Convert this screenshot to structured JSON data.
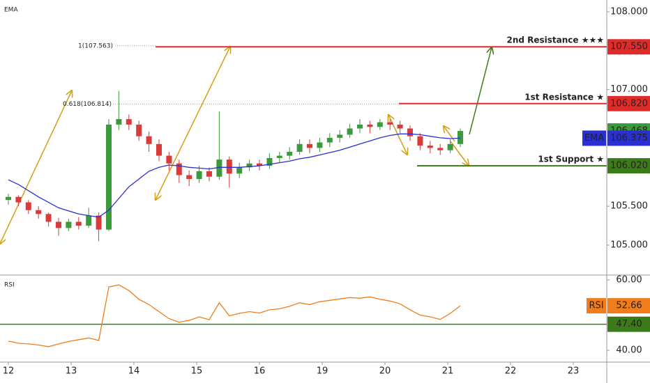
{
  "chart_data": {
    "type": "candlestick",
    "xlim": [
      -0.133,
      9.533
    ],
    "xticks": [
      {
        "value": 0,
        "label": "12"
      },
      {
        "value": 1,
        "label": "13"
      },
      {
        "value": 2,
        "label": "14"
      },
      {
        "value": 3,
        "label": "15"
      },
      {
        "value": 4,
        "label": "16"
      },
      {
        "value": 5,
        "label": "19"
      },
      {
        "value": 6,
        "label": "20"
      },
      {
        "value": 7,
        "label": "21"
      },
      {
        "value": 8,
        "label": "22"
      },
      {
        "value": 9,
        "label": "23"
      }
    ],
    "ylim": [
      104.615,
      108.152
    ],
    "yticks": [
      {
        "value": 105,
        "label": "105.000"
      },
      {
        "value": 105.5,
        "label": "105.500"
      },
      {
        "value": 107,
        "label": "107.000"
      },
      {
        "value": 108,
        "label": "108.000"
      }
    ],
    "up_color": "#3a9a3c",
    "down_color": "#d93b3b",
    "x": [
      0,
      0.16,
      0.32,
      0.48,
      0.64,
      0.8,
      0.96,
      1.12,
      1.28,
      1.44,
      1.6,
      1.76,
      1.92,
      2.08,
      2.24,
      2.4,
      2.56,
      2.72,
      2.88,
      3.04,
      3.2,
      3.36,
      3.52,
      3.68,
      3.84,
      4,
      4.16,
      4.32,
      4.48,
      4.64,
      4.8,
      4.96,
      5.12,
      5.28,
      5.44,
      5.6,
      5.76,
      5.92,
      6.08,
      6.24,
      6.4,
      6.56,
      6.72,
      6.88,
      7.04,
      7.2
    ],
    "candles": [
      [
        105.58,
        105.66,
        105.52,
        105.62
      ],
      [
        105.62,
        105.64,
        105.5,
        105.55
      ],
      [
        105.55,
        105.58,
        105.4,
        105.45
      ],
      [
        105.45,
        105.5,
        105.34,
        105.4
      ],
      [
        105.4,
        105.42,
        105.24,
        105.3
      ],
      [
        105.3,
        105.35,
        105.12,
        105.22
      ],
      [
        105.22,
        105.34,
        105.18,
        105.3
      ],
      [
        105.3,
        105.36,
        105.2,
        105.25
      ],
      [
        105.25,
        105.48,
        105.22,
        105.38
      ],
      [
        105.38,
        105.42,
        105.05,
        105.2
      ],
      [
        105.2,
        106.62,
        105.18,
        106.55
      ],
      [
        106.55,
        106.98,
        106.48,
        106.62
      ],
      [
        106.62,
        106.68,
        106.48,
        106.55
      ],
      [
        106.55,
        106.6,
        106.34,
        106.4
      ],
      [
        106.4,
        106.46,
        106.2,
        106.3
      ],
      [
        106.3,
        106.36,
        106.08,
        106.15
      ],
      [
        106.15,
        106.2,
        105.96,
        106.05
      ],
      [
        106.05,
        106.1,
        105.8,
        105.9
      ],
      [
        105.9,
        105.96,
        105.76,
        105.85
      ],
      [
        105.85,
        106.02,
        105.8,
        105.95
      ],
      [
        105.95,
        106.0,
        105.82,
        105.88
      ],
      [
        105.88,
        106.72,
        105.84,
        106.1
      ],
      [
        106.1,
        106.14,
        105.74,
        105.92
      ],
      [
        105.92,
        106.06,
        105.86,
        106.0
      ],
      [
        106.0,
        106.1,
        105.95,
        106.05
      ],
      [
        106.05,
        106.1,
        105.96,
        106.02
      ],
      [
        106.02,
        106.18,
        105.98,
        106.12
      ],
      [
        106.12,
        106.2,
        106.06,
        106.15
      ],
      [
        106.15,
        106.26,
        106.1,
        106.2
      ],
      [
        106.2,
        106.36,
        106.16,
        106.3
      ],
      [
        106.3,
        106.36,
        106.18,
        106.25
      ],
      [
        106.25,
        106.38,
        106.2,
        106.32
      ],
      [
        106.32,
        106.44,
        106.26,
        106.38
      ],
      [
        106.38,
        106.48,
        106.32,
        106.42
      ],
      [
        106.42,
        106.56,
        106.38,
        106.5
      ],
      [
        106.5,
        106.62,
        106.44,
        106.55
      ],
      [
        106.55,
        106.6,
        106.44,
        106.52
      ],
      [
        106.52,
        106.62,
        106.48,
        106.58
      ],
      [
        106.58,
        106.62,
        106.48,
        106.55
      ],
      [
        106.55,
        106.6,
        106.44,
        106.5
      ],
      [
        106.5,
        106.54,
        106.34,
        106.4
      ],
      [
        106.4,
        106.44,
        106.22,
        106.28
      ],
      [
        106.28,
        106.34,
        106.18,
        106.25
      ],
      [
        106.25,
        106.3,
        106.16,
        106.22
      ],
      [
        106.22,
        106.36,
        106.18,
        106.3
      ],
      [
        106.3,
        106.5,
        106.26,
        106.468
      ]
    ],
    "close_label": "106.468",
    "series": [
      {
        "name": "EMA",
        "color": "#2a2fd1",
        "values": [
          105.84,
          105.78,
          105.7,
          105.62,
          105.55,
          105.48,
          105.44,
          105.4,
          105.38,
          105.36,
          105.45,
          105.6,
          105.75,
          105.85,
          105.95,
          106.0,
          106.03,
          106.02,
          106.0,
          105.99,
          105.98,
          106.0,
          106.0,
          106.0,
          106.01,
          106.02,
          106.04,
          106.06,
          106.08,
          106.11,
          106.13,
          106.16,
          106.19,
          106.22,
          106.26,
          106.3,
          106.34,
          106.38,
          106.41,
          106.43,
          106.43,
          106.42,
          106.4,
          106.38,
          106.37,
          106.375
        ]
      }
    ],
    "levels": [
      {
        "name": "2nd Resistance ★★★",
        "value": 107.55,
        "label": "107.550",
        "color": "#e02b2b"
      },
      {
        "name": "1st Resistance ★",
        "value": 106.82,
        "label": "106.820",
        "color": "#e02b2b"
      },
      {
        "name": "1st Support ★",
        "value": 106.02,
        "label": "106.020",
        "color": "#3d7a1a"
      }
    ],
    "fib": [
      {
        "label": "1(107.563)",
        "value": 107.563
      },
      {
        "label": "0.618(106.814)",
        "value": 106.814
      }
    ],
    "rsi": {
      "name": "RSI",
      "color": "#f07d1a",
      "ylim": [
        36.63,
        61.39
      ],
      "yticks": [
        {
          "value": 60,
          "label": "60.00"
        },
        {
          "value": 40,
          "label": "40.00"
        }
      ],
      "level": {
        "value": 47.4,
        "label": "47.40",
        "color": "#3d7a1a"
      },
      "values": [
        42.6,
        42,
        41.8,
        41.5,
        41,
        41.8,
        42.5,
        43,
        43.5,
        42.8,
        58,
        58.6,
        57,
        54.5,
        53,
        51,
        49,
        48,
        48.5,
        49.5,
        48.7,
        53.5,
        49.8,
        50.5,
        51,
        50.6,
        51.5,
        51.8,
        52.5,
        53.5,
        53,
        53.8,
        54.2,
        54.6,
        55,
        54.8,
        55.2,
        54.5,
        54,
        53.2,
        51.5,
        50,
        49.5,
        48.8,
        50.5,
        52.66
      ]
    }
  }
}
